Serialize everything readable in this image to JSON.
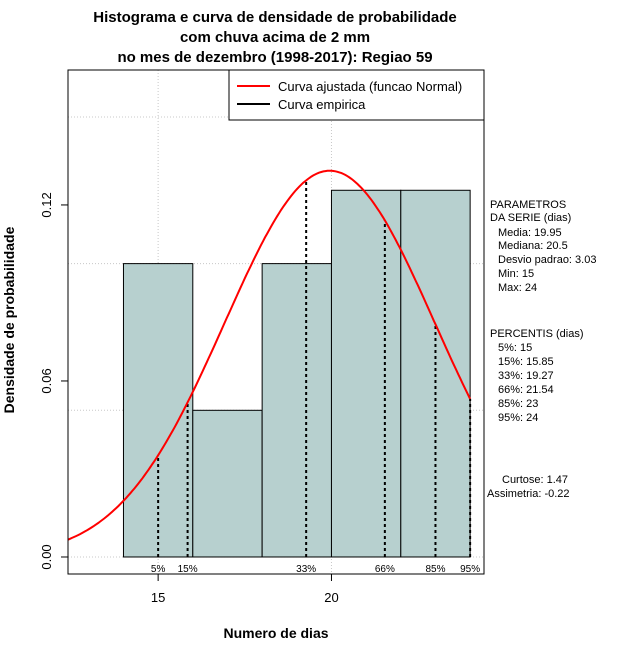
{
  "chart_data": {
    "type": "bar",
    "title_lines": [
      "Histograma e curva de densidade de probabilidade",
      "com chuva acima de 2 mm",
      "no mes de dezembro (1998-2017): Regiao 59"
    ],
    "xlabel": "Numero de dias",
    "ylabel": "Densidade de probabilidade",
    "xlim": [
      12.4,
      24.4
    ],
    "ylim": [
      -0.0058,
      0.166
    ],
    "x_ticks": [
      15,
      20
    ],
    "y_ticks": [
      0.0,
      0.06,
      0.12
    ],
    "y_tick_labels": [
      "0.00",
      "0.06",
      "0.12"
    ],
    "grid": true,
    "bins": [
      {
        "from": 14,
        "to": 16,
        "density": 0.1
      },
      {
        "from": 16,
        "to": 18,
        "density": 0.05
      },
      {
        "from": 18,
        "to": 20,
        "density": 0.1
      },
      {
        "from": 20,
        "to": 22,
        "density": 0.125
      },
      {
        "from": 22,
        "to": 24,
        "density": 0.125
      }
    ],
    "series": [
      {
        "name": "Curva ajustada (funcao Normal)",
        "type": "normal",
        "mean": 19.95,
        "sd": 3.03,
        "color": "#ff0000"
      },
      {
        "name": "Curva empirica",
        "color": "#000000"
      }
    ],
    "legend_position": "top-right",
    "percentiles": [
      {
        "label": "5%",
        "x": 15
      },
      {
        "label": "15%",
        "x": 15.85
      },
      {
        "label": "33%",
        "x": 19.27
      },
      {
        "label": "66%",
        "x": 21.54
      },
      {
        "label": "85%",
        "x": 23
      },
      {
        "label": "95%",
        "x": 24
      }
    ],
    "bar_color": "#b7d0cf"
  },
  "side_panel": {
    "params_title": [
      "PARAMETROS",
      "DA SERIE (dias)"
    ],
    "params": [
      "Media: 19.95",
      "Mediana: 20.5",
      "Desvio padrao: 3.03",
      "Min: 15",
      "Max: 24"
    ],
    "percentis_title": "PERCENTIS (dias)",
    "percentis": [
      "5%: 15",
      "15%: 15.85",
      "33%: 19.27",
      "66%: 21.54",
      "85%: 23",
      "95%: 24"
    ],
    "curtose": "Curtose: 1.47",
    "assimetria": "Assimetria: -0.22"
  }
}
